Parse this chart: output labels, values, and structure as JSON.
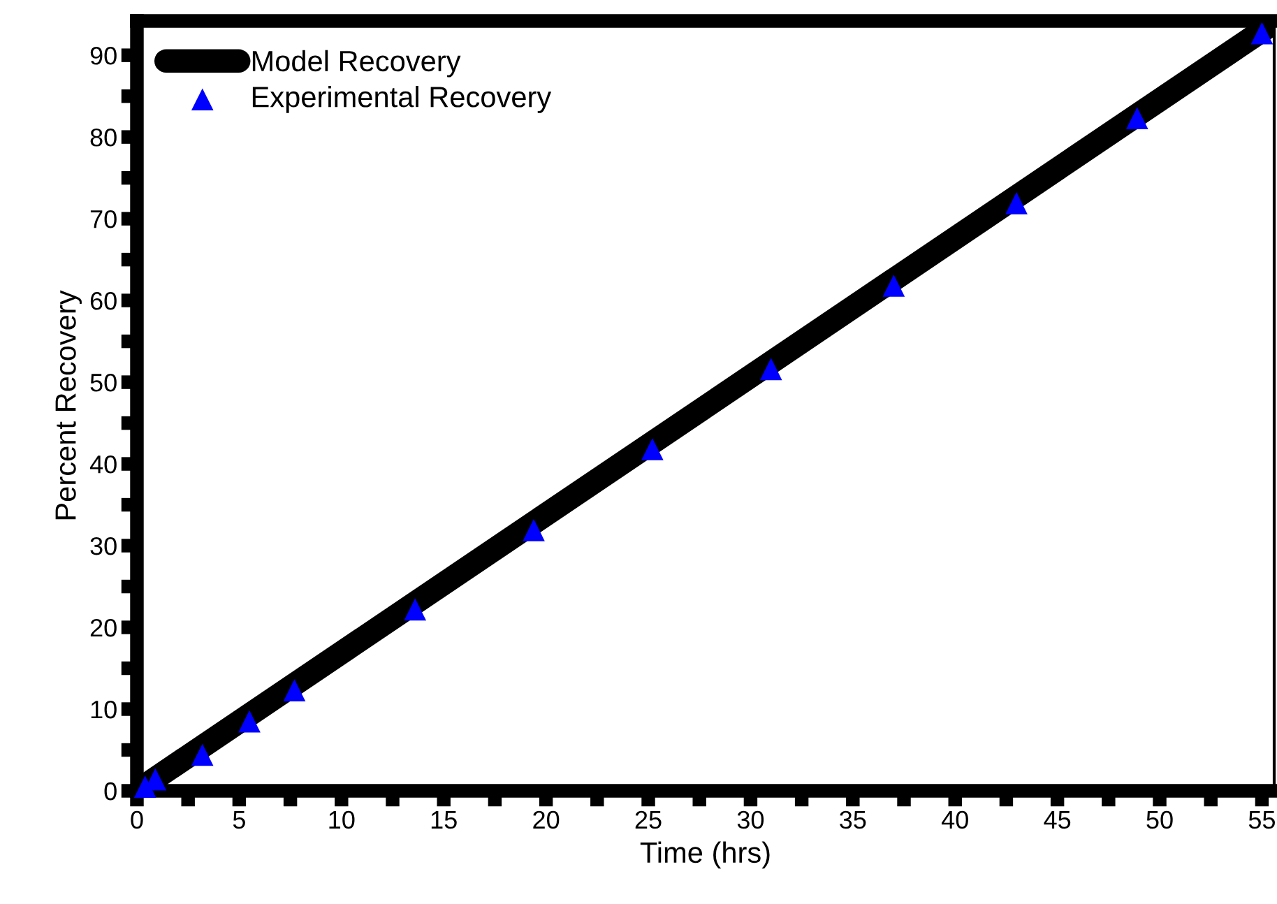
{
  "chart_data": {
    "type": "scatter",
    "xlabel": "Time (hrs)",
    "ylabel": "Percent Recovery",
    "xlim": [
      0,
      55.6
    ],
    "ylim": [
      0,
      94.2
    ],
    "xticks": [
      0,
      {
        "value": 2.5,
        "label": null
      },
      5,
      {
        "value": 7.5,
        "label": null
      },
      10,
      {
        "value": 12.5,
        "label": null
      },
      15,
      {
        "value": 17.5,
        "label": null
      },
      20,
      {
        "value": 22.5,
        "label": null
      },
      25,
      {
        "value": 27.5,
        "label": null
      },
      30,
      {
        "value": 32.5,
        "label": null
      },
      35,
      {
        "value": 37.5,
        "label": null
      },
      40,
      {
        "value": 42.5,
        "label": null
      },
      45,
      {
        "value": 47.5,
        "label": null
      },
      50,
      {
        "value": 52.5,
        "label": null
      },
      55
    ],
    "yticks": [
      0,
      {
        "value": 5,
        "label": null
      },
      10,
      {
        "value": 15,
        "label": null
      },
      20,
      {
        "value": 25,
        "label": null
      },
      30,
      {
        "value": 35,
        "label": null
      },
      40,
      {
        "value": 45,
        "label": null
      },
      50,
      {
        "value": 55,
        "label": null
      },
      60,
      {
        "value": 65,
        "label": null
      },
      70,
      {
        "value": 75,
        "label": null
      },
      80,
      {
        "value": 85,
        "label": null
      },
      90
    ],
    "legend": "top left",
    "series": [
      {
        "name": "Model Recovery",
        "type": "line",
        "color": "#000000",
        "marker": "none",
        "line_style": "solid",
        "x": [
          0,
          55.6
        ],
        "values": [
          0,
          94
        ]
      },
      {
        "name": "Experimental Recovery",
        "color": "#0000ff",
        "marker": "triangle",
        "x": [
          0.4,
          0.9,
          3.2,
          5.5,
          7.7,
          13.6,
          19.4,
          25.2,
          31.0,
          37.0,
          43.0,
          48.9,
          55.0
        ],
        "values": [
          0.5,
          1.4,
          4.4,
          8.5,
          12.3,
          22.2,
          31.9,
          41.8,
          51.6,
          61.8,
          71.9,
          82.3,
          92.7
        ]
      }
    ]
  }
}
